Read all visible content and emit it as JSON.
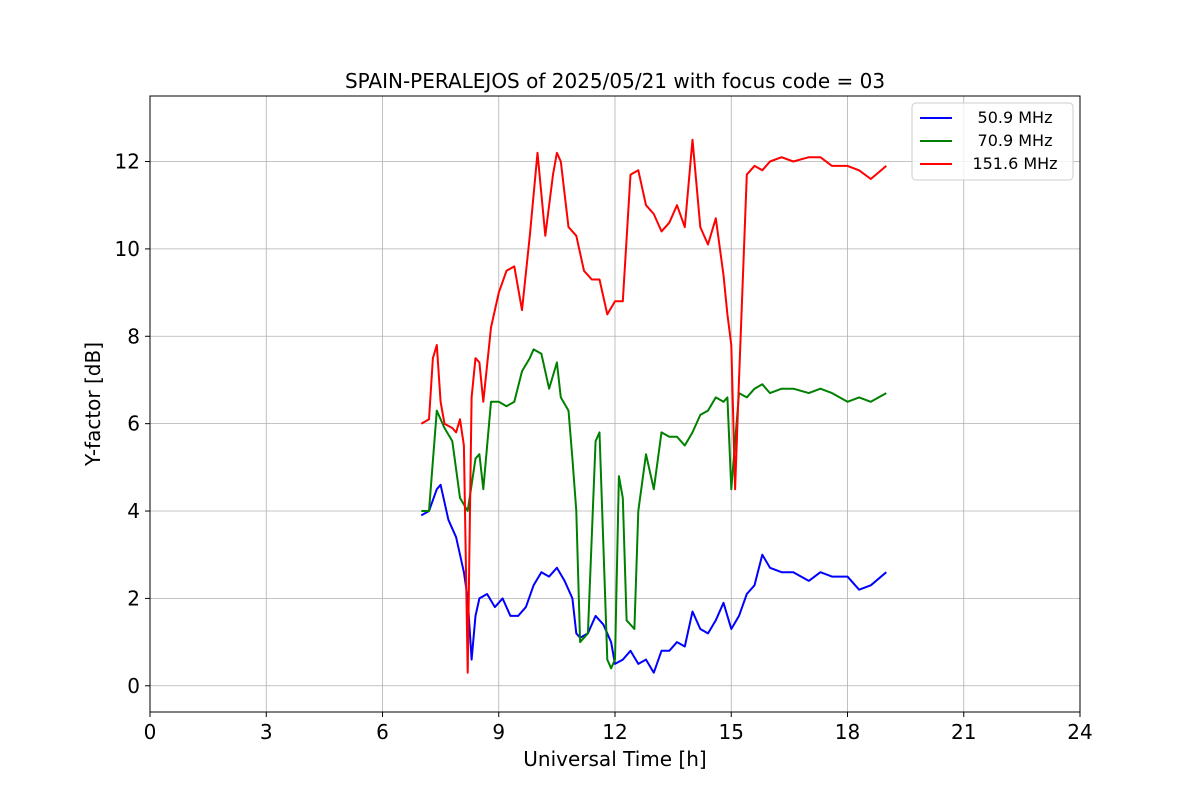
{
  "chart_data": {
    "type": "line",
    "title": "SPAIN-PERALEJOS of 2025/05/21 with focus code = 03",
    "xlabel": "Universal Time [h]",
    "ylabel": "Y-factor [dB]",
    "xlim": [
      0,
      24
    ],
    "ylim": [
      -0.6,
      13.5
    ],
    "xticks": [
      0,
      3,
      6,
      9,
      12,
      15,
      18,
      21,
      24
    ],
    "yticks": [
      0,
      2,
      4,
      6,
      8,
      10,
      12
    ],
    "grid": true,
    "legend_position": "top-right",
    "series": [
      {
        "name": "50.9 MHz",
        "color": "#0000ff",
        "x": [
          7.0,
          7.2,
          7.4,
          7.5,
          7.7,
          7.9,
          8.1,
          8.2,
          8.3,
          8.4,
          8.5,
          8.7,
          8.9,
          9.1,
          9.3,
          9.5,
          9.7,
          9.9,
          10.1,
          10.3,
          10.5,
          10.7,
          10.9,
          11.0,
          11.1,
          11.3,
          11.5,
          11.7,
          11.9,
          12.0,
          12.2,
          12.4,
          12.6,
          12.8,
          13.0,
          13.2,
          13.4,
          13.6,
          13.8,
          14.0,
          14.2,
          14.4,
          14.6,
          14.8,
          15.0,
          15.2,
          15.4,
          15.6,
          15.8,
          16.0,
          16.3,
          16.6,
          17.0,
          17.3,
          17.6,
          18.0,
          18.3,
          18.6,
          19.0
        ],
        "y": [
          3.9,
          4.0,
          4.5,
          4.6,
          3.8,
          3.4,
          2.6,
          2.0,
          0.6,
          1.6,
          2.0,
          2.1,
          1.8,
          2.0,
          1.6,
          1.6,
          1.8,
          2.3,
          2.6,
          2.5,
          2.7,
          2.4,
          2.0,
          1.2,
          1.1,
          1.2,
          1.6,
          1.4,
          1.0,
          0.5,
          0.6,
          0.8,
          0.5,
          0.6,
          0.3,
          0.8,
          0.8,
          1.0,
          0.9,
          1.7,
          1.3,
          1.2,
          1.5,
          1.9,
          1.3,
          1.6,
          2.1,
          2.3,
          3.0,
          2.7,
          2.6,
          2.6,
          2.4,
          2.6,
          2.5,
          2.5,
          2.2,
          2.3,
          2.6
        ]
      },
      {
        "name": "70.9 MHz",
        "color": "#008000",
        "x": [
          7.0,
          7.2,
          7.4,
          7.6,
          7.8,
          8.0,
          8.2,
          8.4,
          8.5,
          8.6,
          8.8,
          9.0,
          9.2,
          9.4,
          9.6,
          9.8,
          9.9,
          10.1,
          10.3,
          10.5,
          10.6,
          10.8,
          10.9,
          11.0,
          11.1,
          11.3,
          11.5,
          11.6,
          11.8,
          11.9,
          12.0,
          12.1,
          12.2,
          12.3,
          12.5,
          12.6,
          12.8,
          13.0,
          13.2,
          13.4,
          13.6,
          13.8,
          14.0,
          14.2,
          14.4,
          14.6,
          14.8,
          14.9,
          15.0,
          15.2,
          15.4,
          15.6,
          15.8,
          16.0,
          16.3,
          16.6,
          17.0,
          17.3,
          17.6,
          18.0,
          18.3,
          18.6,
          19.0
        ],
        "y": [
          4.0,
          4.0,
          6.3,
          5.9,
          5.6,
          4.3,
          4.0,
          5.2,
          5.3,
          4.5,
          6.5,
          6.5,
          6.4,
          6.5,
          7.2,
          7.5,
          7.7,
          7.6,
          6.8,
          7.4,
          6.6,
          6.3,
          5.2,
          4.0,
          1.0,
          1.2,
          5.6,
          5.8,
          0.6,
          0.4,
          0.6,
          4.8,
          4.3,
          1.5,
          1.3,
          4.0,
          5.3,
          4.5,
          5.8,
          5.7,
          5.7,
          5.5,
          5.8,
          6.2,
          6.3,
          6.6,
          6.5,
          6.6,
          4.5,
          6.7,
          6.6,
          6.8,
          6.9,
          6.7,
          6.8,
          6.8,
          6.7,
          6.8,
          6.7,
          6.5,
          6.6,
          6.5,
          6.7
        ]
      },
      {
        "name": "151.6 MHz",
        "color": "#ff0000",
        "x": [
          7.0,
          7.2,
          7.3,
          7.4,
          7.5,
          7.6,
          7.8,
          7.9,
          8.0,
          8.1,
          8.2,
          8.3,
          8.4,
          8.5,
          8.6,
          8.8,
          9.0,
          9.2,
          9.4,
          9.6,
          9.8,
          10.0,
          10.2,
          10.4,
          10.5,
          10.6,
          10.8,
          11.0,
          11.2,
          11.4,
          11.6,
          11.8,
          12.0,
          12.2,
          12.4,
          12.6,
          12.8,
          13.0,
          13.2,
          13.4,
          13.6,
          13.8,
          14.0,
          14.2,
          14.4,
          14.6,
          14.8,
          14.9,
          15.0,
          15.1,
          15.2,
          15.4,
          15.6,
          15.8,
          16.0,
          16.3,
          16.6,
          17.0,
          17.3,
          17.6,
          18.0,
          18.3,
          18.6,
          19.0
        ],
        "y": [
          6.0,
          6.1,
          7.5,
          7.8,
          6.5,
          6.0,
          5.9,
          5.8,
          6.1,
          5.5,
          0.3,
          6.6,
          7.5,
          7.4,
          6.5,
          8.2,
          9.0,
          9.5,
          9.6,
          8.6,
          10.3,
          12.2,
          10.3,
          11.7,
          12.2,
          12.0,
          10.5,
          10.3,
          9.5,
          9.3,
          9.3,
          8.5,
          8.8,
          8.8,
          11.7,
          11.8,
          11.0,
          10.8,
          10.4,
          10.6,
          11.0,
          10.5,
          12.5,
          10.5,
          10.1,
          10.7,
          9.4,
          8.5,
          7.8,
          4.5,
          7.0,
          11.7,
          11.9,
          11.8,
          12.0,
          12.1,
          12.0,
          12.1,
          12.1,
          11.9,
          11.9,
          11.8,
          11.6,
          11.9
        ]
      }
    ]
  }
}
